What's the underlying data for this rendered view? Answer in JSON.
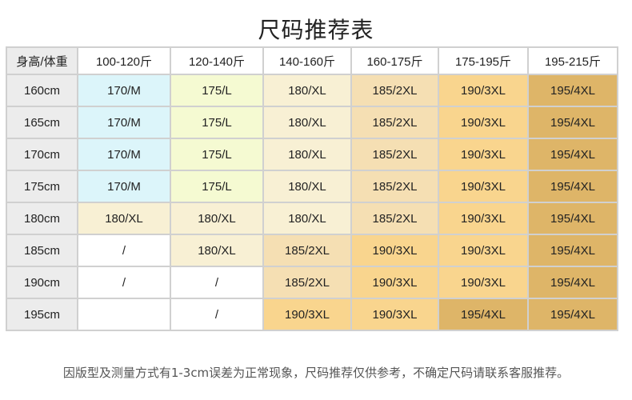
{
  "title": "尺码推荐表",
  "table": {
    "corner": "身高/体重",
    "columns": [
      "100-120斤",
      "120-140斤",
      "140-160斤",
      "160-175斤",
      "175-195斤",
      "195-215斤"
    ],
    "rows": [
      {
        "height": "160cm",
        "cells": [
          "170/M",
          "175/L",
          "180/XL",
          "185/2XL",
          "190/3XL",
          "195/4XL"
        ]
      },
      {
        "height": "165cm",
        "cells": [
          "170/M",
          "175/L",
          "180/XL",
          "185/2XL",
          "190/3XL",
          "195/4XL"
        ]
      },
      {
        "height": "170cm",
        "cells": [
          "170/M",
          "175/L",
          "180/XL",
          "185/2XL",
          "190/3XL",
          "195/4XL"
        ]
      },
      {
        "height": "175cm",
        "cells": [
          "170/M",
          "175/L",
          "180/XL",
          "185/2XL",
          "190/3XL",
          "195/4XL"
        ]
      },
      {
        "height": "180cm",
        "cells": [
          "180/XL",
          "180/XL",
          "180/XL",
          "185/2XL",
          "190/3XL",
          "195/4XL"
        ]
      },
      {
        "height": "185cm",
        "cells": [
          "/",
          "180/XL",
          "185/2XL",
          "190/3XL",
          "190/3XL",
          "195/4XL"
        ]
      },
      {
        "height": "190cm",
        "cells": [
          "/",
          "/",
          "185/2XL",
          "190/3XL",
          "190/3XL",
          "195/4XL"
        ]
      },
      {
        "height": "195cm",
        "cells": [
          "",
          "/",
          "190/3XL",
          "190/3XL",
          "195/4XL",
          "195/4XL"
        ]
      }
    ]
  },
  "size_colors": {
    "170/M": "#dcf5fa",
    "175/L": "#f5fad2",
    "180/XL": "#f8f0d4",
    "185/2XL": "#f5dfb3",
    "190/3XL": "#f9d58e",
    "195/4XL": "#deb568",
    "/": "#ffffff",
    "": "#ffffff"
  },
  "footnote": "因版型及测量方式有1-3cm误差为正常现象，尺码推荐仅供参考，不确定尺码请联系客服推荐。"
}
